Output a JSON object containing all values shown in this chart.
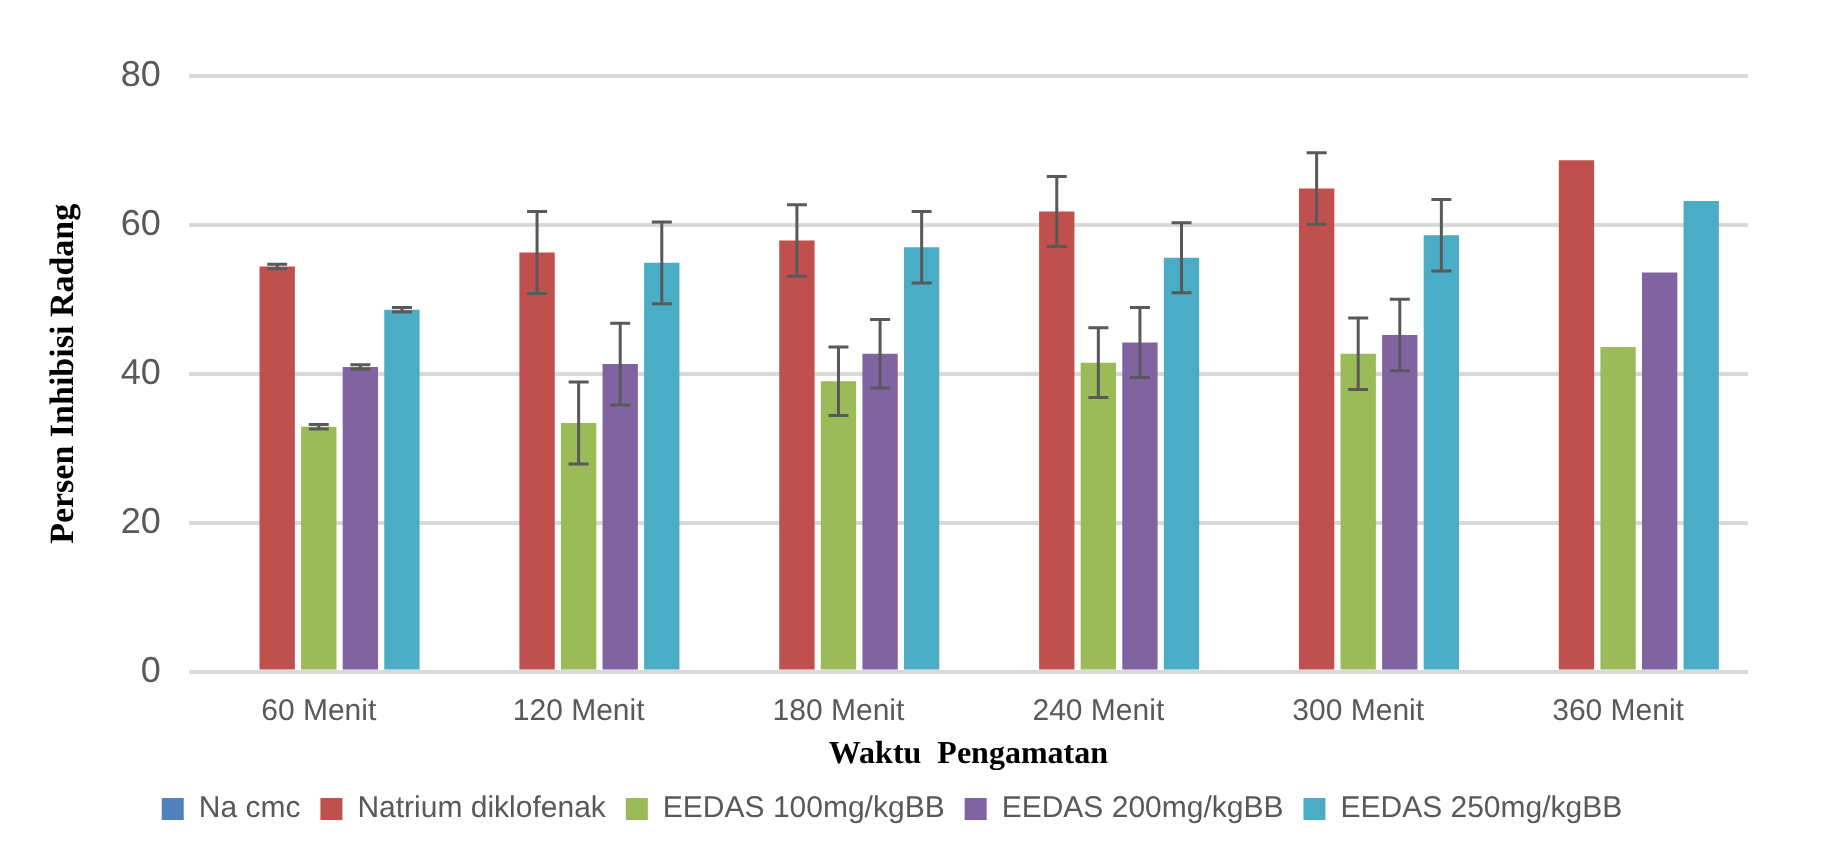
{
  "chart_data": {
    "type": "bar",
    "xlabel": "Waktu  Pengamatan",
    "ylabel": "Persen Inhibisi Radang",
    "categories": [
      "60 Menit",
      "120 Menit",
      "180 Menit",
      "240 Menit",
      "300 Menit",
      "360 Menit"
    ],
    "series": [
      {
        "name": "Na cmc",
        "color": "#4f81bd",
        "values": [
          0,
          0,
          0,
          0,
          0,
          0
        ]
      },
      {
        "name": "Natrium diklofenak",
        "color": "#c0504d",
        "values": [
          54.4,
          56.3,
          57.9,
          61.8,
          64.9,
          68.7
        ],
        "errors": [
          0.3,
          5.5,
          4.8,
          4.7,
          4.8,
          null
        ]
      },
      {
        "name": "EEDAS 100mg/kgBB",
        "color": "#9bbb59",
        "values": [
          32.9,
          33.4,
          39.0,
          41.5,
          42.7,
          43.6
        ],
        "errors": [
          0.3,
          5.5,
          4.6,
          4.7,
          4.8,
          null
        ]
      },
      {
        "name": "EEDAS 200mg/kgBB",
        "color": "#8064a2",
        "values": [
          40.9,
          41.3,
          42.7,
          44.2,
          45.2,
          53.6
        ],
        "errors": [
          0.3,
          5.5,
          4.6,
          4.7,
          4.8,
          null
        ]
      },
      {
        "name": "EEDAS 250mg/kgBB",
        "color": "#4bacc6",
        "values": [
          48.6,
          54.9,
          57.0,
          55.6,
          58.6,
          63.2
        ],
        "errors": [
          0.3,
          5.5,
          4.8,
          4.7,
          4.8,
          null
        ]
      }
    ],
    "ylim": [
      0,
      80
    ],
    "yticks": [
      0,
      20,
      40,
      60,
      80
    ],
    "grid": "y",
    "legend": "bottom"
  }
}
